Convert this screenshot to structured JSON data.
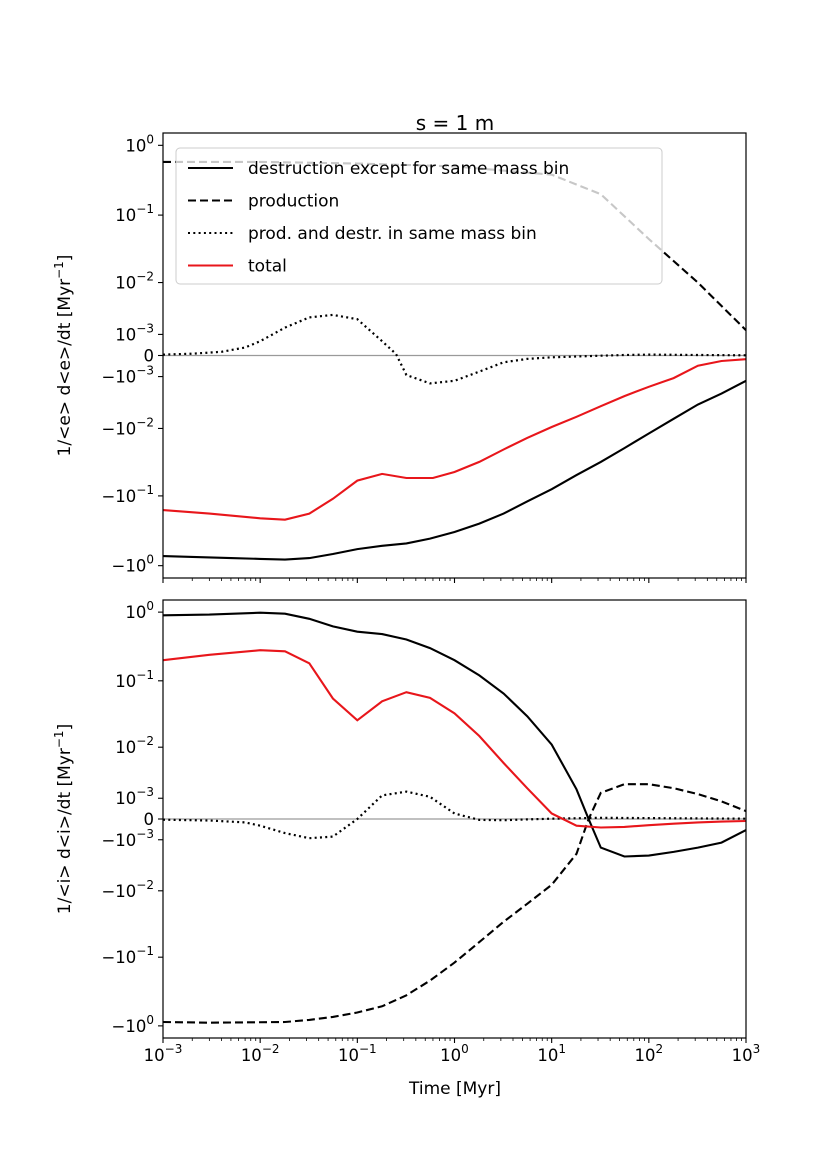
{
  "chart_data": {
    "type": "line",
    "title": "s = 1 m",
    "xlabel": "Time [Myr]",
    "xscale": "log",
    "xlim": [
      0.001,
      1000
    ],
    "x_ticks": [
      {
        "value": 0.001,
        "base": "10",
        "exp": "−3"
      },
      {
        "value": 0.01,
        "base": "10",
        "exp": "−2"
      },
      {
        "value": 0.1,
        "base": "10",
        "exp": "−1"
      },
      {
        "value": 1,
        "base": "10",
        "exp": "0"
      },
      {
        "value": 10,
        "base": "10",
        "exp": "1"
      },
      {
        "value": 100,
        "base": "10",
        "exp": "2"
      },
      {
        "value": 1000,
        "base": "10",
        "exp": "3"
      }
    ],
    "y_ticks": [
      {
        "value": 1,
        "base": "10",
        "exp": "0"
      },
      {
        "value": 0.1,
        "base": "10",
        "exp": "−1"
      },
      {
        "value": 0.01,
        "base": "10",
        "exp": "−2"
      },
      {
        "value": 0.001,
        "base": "10",
        "exp": "−3"
      },
      {
        "value": 0,
        "base": "0",
        "exp": ""
      },
      {
        "value": -0.001,
        "base": "−10",
        "exp": "−3"
      },
      {
        "value": -0.01,
        "base": "−10",
        "exp": "−2"
      },
      {
        "value": -0.1,
        "base": "−10",
        "exp": "−1"
      },
      {
        "value": -1,
        "base": "−10",
        "exp": "0"
      }
    ],
    "legend": {
      "placement": "top",
      "entries": [
        {
          "label": "destruction except for same mass bin",
          "color": "#000000",
          "style": "solid"
        },
        {
          "label": "production",
          "color": "#000000",
          "style": "dashed"
        },
        {
          "label": "prod. and destr. in same mass bin",
          "color": "#000000",
          "style": "dotted"
        },
        {
          "label": "total",
          "color": "#e8161b",
          "style": "solid"
        }
      ]
    },
    "panels": [
      {
        "ylabel_prefix": "1/<e> d<e>/dt [Myr",
        "ylabel_sup": "−1",
        "ylabel_suffix": "]",
        "ylim": [
          -1.5,
          1.5
        ],
        "linthresh": 0.001,
        "series": [
          {
            "name": "destruction except for same mass bin",
            "style": "solid",
            "color": "#000000",
            "x": [
              0.001,
              0.002,
              0.005,
              0.01,
              0.018,
              0.032,
              0.056,
              0.1,
              0.18,
              0.32,
              0.56,
              1,
              1.8,
              3.2,
              5.6,
              10,
              18,
              32,
              56,
              100,
              180,
              320,
              560,
              1000
            ],
            "y": [
              -0.73,
              -0.75,
              -0.78,
              -0.8,
              -0.82,
              -0.78,
              -0.68,
              -0.58,
              -0.52,
              -0.48,
              -0.41,
              -0.33,
              -0.25,
              -0.18,
              -0.12,
              -0.08,
              -0.05,
              -0.032,
              -0.02,
              -0.012,
              -0.007,
              -0.004,
              -0.0025,
              -0.0013
            ]
          },
          {
            "name": "production",
            "style": "dashed",
            "color": "#000000",
            "x": [
              0.001,
              0.01,
              0.1,
              1,
              10,
              32,
              100,
              320,
              1000
            ],
            "y": [
              0.58,
              0.58,
              0.55,
              0.5,
              0.38,
              0.2,
              0.045,
              0.01,
              0.0013
            ]
          },
          {
            "name": "prod. and destr. in same mass bin",
            "style": "dotted",
            "color": "#000000",
            "x": [
              0.001,
              0.002,
              0.004,
              0.007,
              0.01,
              0.018,
              0.032,
              0.056,
              0.1,
              0.18,
              0.25,
              0.32,
              0.56,
              1,
              1.8,
              3.2,
              5.6,
              10,
              32,
              56,
              100,
              320,
              1000
            ],
            "y": [
              3e-05,
              6e-05,
              0.00013,
              0.0003,
              0.0006,
              0.0015,
              0.0025,
              0.0028,
              0.0023,
              0.0006,
              5e-05,
              -0.0009,
              -0.0015,
              -0.0013,
              -0.0007,
              -0.00025,
              -0.00012,
              -6e-05,
              -8e-06,
              1.5e-05,
              3e-05,
              1.5e-05,
              8e-06
            ]
          },
          {
            "name": "total",
            "style": "solid",
            "color": "#e8161b",
            "x": [
              0.001,
              0.003,
              0.01,
              0.018,
              0.032,
              0.056,
              0.1,
              0.18,
              0.32,
              0.6,
              1,
              1.8,
              3.2,
              5.6,
              10,
              18,
              32,
              56,
              100,
              180,
              320,
              560,
              1000
            ],
            "y": [
              -0.16,
              -0.18,
              -0.21,
              -0.22,
              -0.18,
              -0.11,
              -0.06,
              -0.048,
              -0.055,
              -0.055,
              -0.045,
              -0.032,
              -0.021,
              -0.014,
              -0.0095,
              -0.0065,
              -0.0043,
              -0.0028,
              -0.0018,
              -0.0011,
              -0.0004,
              -0.0002,
              -0.00013
            ]
          }
        ]
      },
      {
        "ylabel_prefix": "1/<i> d<i>/dt [Myr",
        "ylabel_sup": "−1",
        "ylabel_suffix": "]",
        "ylim": [
          -1.5,
          1.5
        ],
        "linthresh": 0.001,
        "series": [
          {
            "name": "destruction except for same mass bin",
            "style": "solid",
            "color": "#000000",
            "x": [
              0.001,
              0.003,
              0.01,
              0.018,
              0.032,
              0.056,
              0.1,
              0.18,
              0.32,
              0.56,
              1,
              1.8,
              3.2,
              5.6,
              10,
              18,
              24,
              32,
              56,
              100,
              180,
              320,
              560,
              1000
            ],
            "y": [
              0.9,
              0.92,
              0.98,
              0.95,
              0.8,
              0.62,
              0.52,
              0.48,
              0.4,
              0.3,
              0.2,
              0.12,
              0.065,
              0.03,
              0.011,
              0.0017,
              0.0,
              -0.0016,
              -0.0025,
              -0.0024,
              -0.002,
              -0.0016,
              -0.0012,
              -0.00045
            ]
          },
          {
            "name": "production",
            "style": "dashed",
            "color": "#000000",
            "x": [
              0.001,
              0.003,
              0.018,
              0.032,
              0.056,
              0.1,
              0.18,
              0.32,
              0.56,
              1,
              1.8,
              3.2,
              5.6,
              10,
              18,
              24,
              32,
              56,
              100,
              180,
              320,
              560,
              1000
            ],
            "y": [
              -0.88,
              -0.9,
              -0.88,
              -0.82,
              -0.74,
              -0.64,
              -0.52,
              -0.36,
              -0.22,
              -0.12,
              -0.06,
              -0.03,
              -0.016,
              -0.008,
              -0.0022,
              0.0,
              0.0014,
              0.0022,
              0.0022,
              0.0018,
              0.0013,
              0.0008,
              0.0003
            ]
          },
          {
            "name": "prod. and destr. in same mass bin",
            "style": "dotted",
            "color": "#000000",
            "x": [
              0.001,
              0.003,
              0.007,
              0.01,
              0.018,
              0.032,
              0.056,
              0.1,
              0.18,
              0.32,
              0.56,
              1,
              1.8,
              3.2,
              5.6,
              10,
              32,
              100,
              320,
              1000
            ],
            "y": [
              -2.5e-05,
              -5e-05,
              -0.00012,
              -0.00025,
              -0.0006,
              -0.0009,
              -0.0008,
              0.0,
              0.0012,
              0.0015,
              0.0011,
              0.0002,
              -3e-05,
              -4e-05,
              -1.5e-05,
              1e-05,
              4e-05,
              3e-05,
              2e-05,
              1e-05
            ]
          },
          {
            "name": "total",
            "style": "solid",
            "color": "#e8161b",
            "x": [
              0.001,
              0.003,
              0.01,
              0.018,
              0.032,
              0.056,
              0.1,
              0.18,
              0.32,
              0.56,
              1,
              1.8,
              3.2,
              5.6,
              10,
              18,
              32,
              56,
              100,
              180,
              320,
              560,
              1000
            ],
            "y": [
              0.2,
              0.24,
              0.28,
              0.27,
              0.18,
              0.055,
              0.026,
              0.05,
              0.068,
              0.056,
              0.033,
              0.015,
              0.0055,
              0.0018,
              0.0002,
              -0.00025,
              -0.00033,
              -0.0003,
              -0.00023,
              -0.00017,
              -0.00012,
              -9e-05,
              -7e-05
            ]
          }
        ]
      }
    ]
  }
}
